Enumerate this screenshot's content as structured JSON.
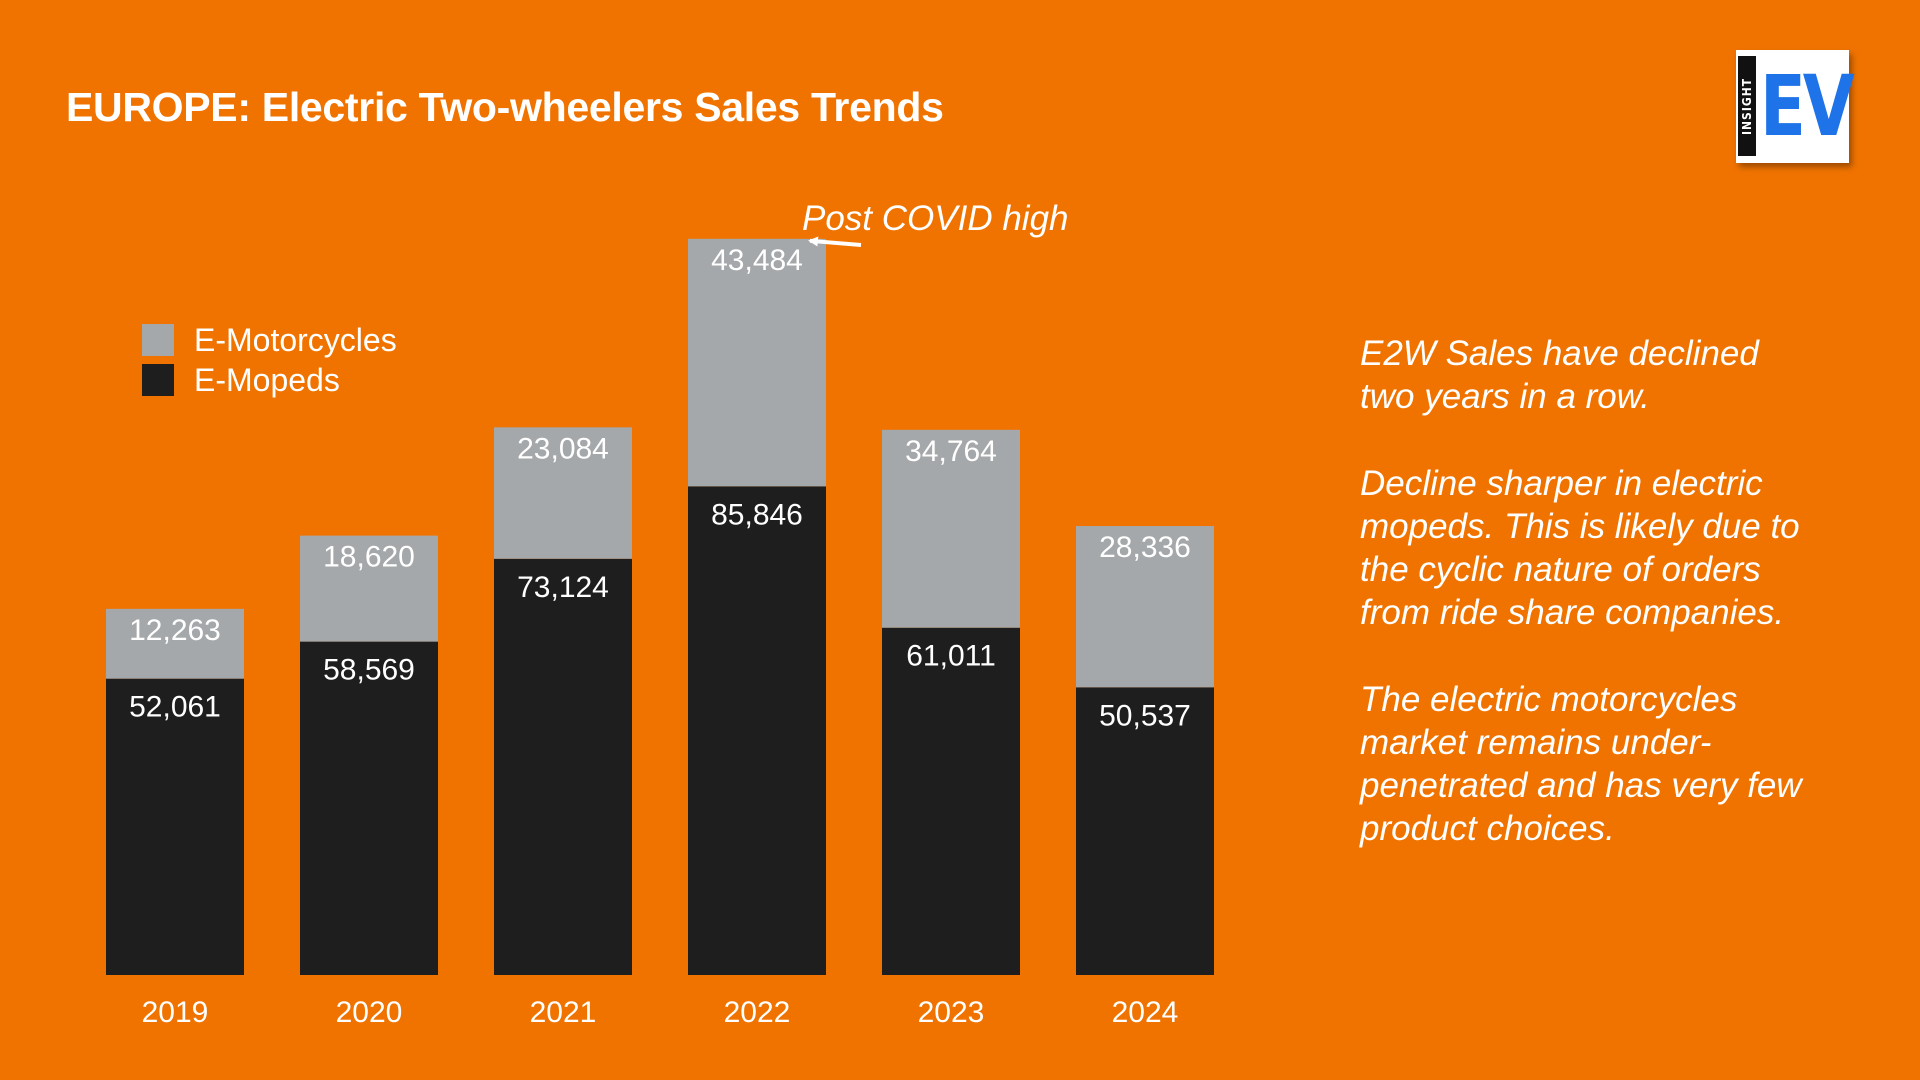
{
  "header": {
    "title": "EUROPE: Electric Two-wheelers Sales Trends"
  },
  "logo": {
    "text_small": "INSIGHT",
    "text_large": "EV",
    "icon": "insight-ev-logo"
  },
  "colors": {
    "background": "#F07300",
    "motorcycles": "#A5A8AA",
    "mopeds": "#1E1E1E",
    "text": "#FFFFFF",
    "logo_blue": "#1E73E8"
  },
  "chart_data": {
    "type": "bar",
    "stacked": true,
    "categories": [
      "2019",
      "2020",
      "2021",
      "2022",
      "2023",
      "2024"
    ],
    "series": [
      {
        "name": "E-Mopeds",
        "values": [
          52061,
          58569,
          73124,
          85846,
          61011,
          50537
        ],
        "labels": [
          "52,061",
          "58,569",
          "73,124",
          "85,846",
          "61,011",
          "50,537"
        ]
      },
      {
        "name": "E-Motorcycles",
        "values": [
          12263,
          18620,
          23084,
          43484,
          34764,
          28336
        ],
        "labels": [
          "12,263",
          "18,620",
          "23,084",
          "43,484",
          "34,764",
          "28,336"
        ]
      }
    ],
    "legend": {
      "placement": "top-left",
      "order": [
        "E-Motorcycles",
        "E-Mopeds"
      ]
    },
    "annotation": {
      "text": "Post COVID high",
      "category": "2022"
    },
    "ylim": [
      0,
      130000
    ],
    "grid": false
  },
  "notes": [
    "E2W Sales have declined two years in a row.",
    "Decline sharper in electric mopeds. This is likely due to the cyclic nature of orders from ride share companies.",
    "The electric motorcycles market remains under-penetrated and has very few product choices."
  ]
}
